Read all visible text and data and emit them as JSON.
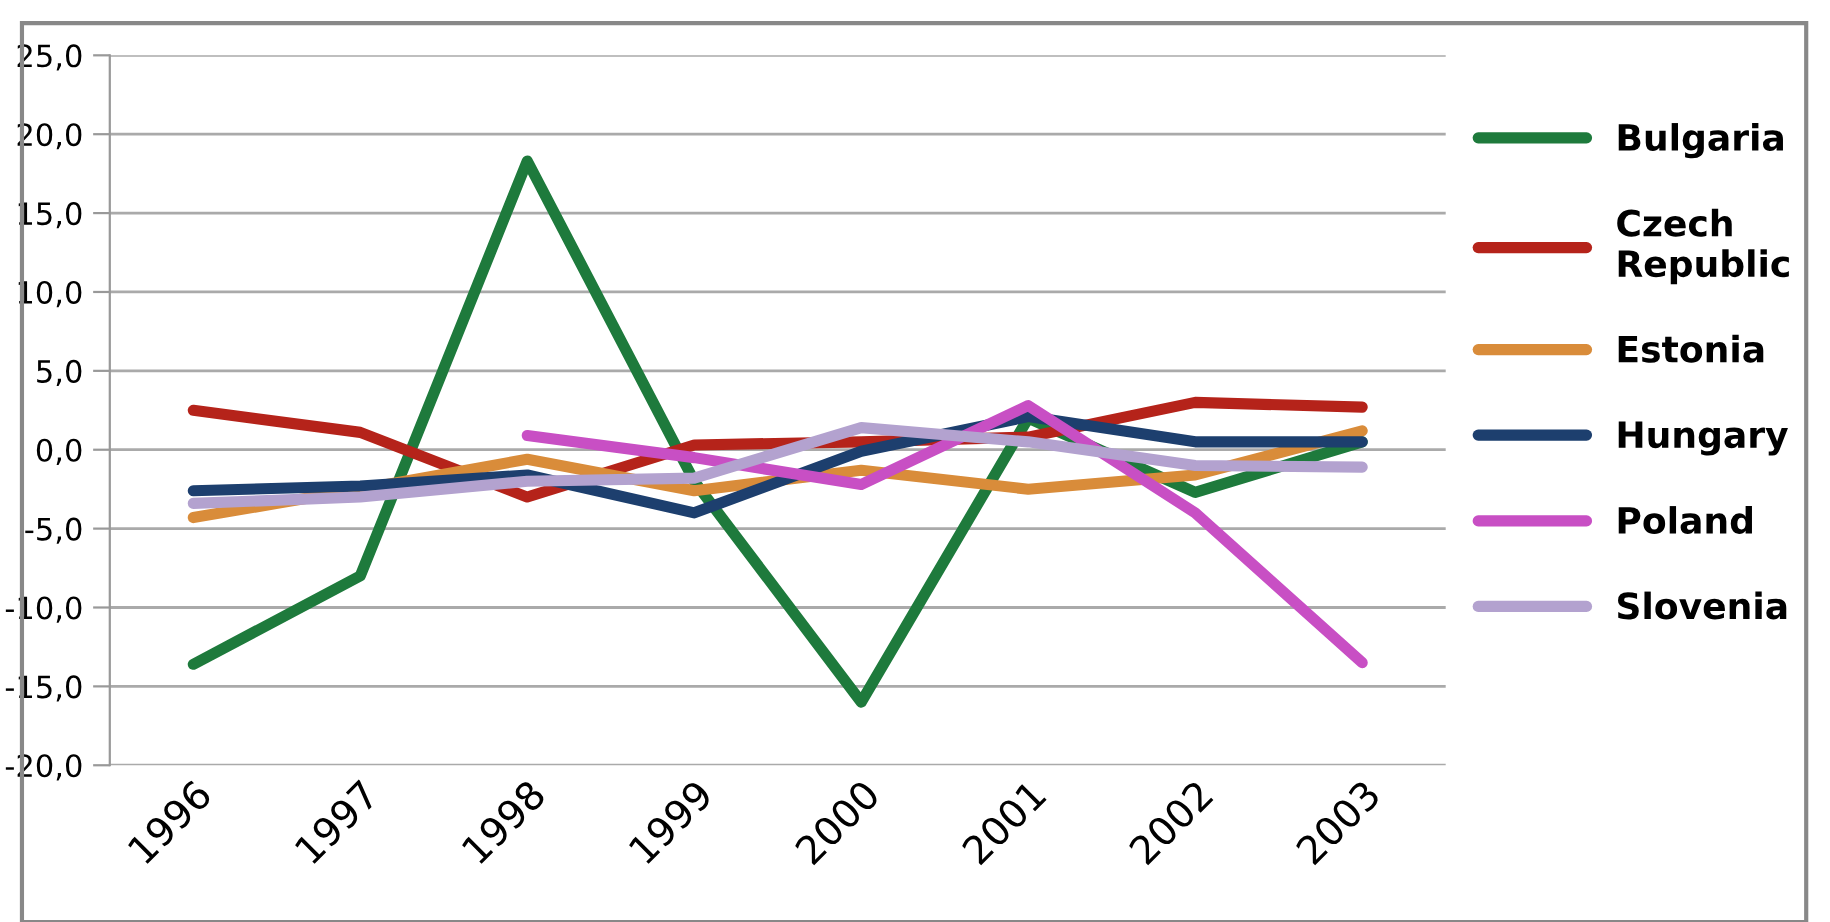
{
  "chart_data": {
    "type": "line",
    "categories": [
      "1996",
      "1997",
      "1998",
      "1999",
      "2000",
      "2001",
      "2002",
      "2003"
    ],
    "series": [
      {
        "name": "Bulgaria",
        "color": "#1e7a3c",
        "values": [
          -13.6,
          -8.0,
          18.3,
          -2.0,
          -16.0,
          2.0,
          -2.7,
          0.5
        ]
      },
      {
        "name": "Czech Republic",
        "color": "#b5231a",
        "values": [
          2.5,
          1.1,
          -3.0,
          0.3,
          0.5,
          0.8,
          3.0,
          2.7
        ]
      },
      {
        "name": "Estonia",
        "color": "#d98c3a",
        "values": [
          -4.3,
          -2.5,
          -0.6,
          -2.6,
          -1.3,
          -2.5,
          -1.6,
          1.2
        ]
      },
      {
        "name": "Hungary",
        "color": "#1d3f6e",
        "values": [
          -2.6,
          -2.3,
          -1.6,
          -4.0,
          -0.1,
          2.1,
          0.5,
          0.5
        ]
      },
      {
        "name": "Poland",
        "color": "#c84fc4",
        "values": [
          null,
          null,
          0.9,
          -0.5,
          -2.2,
          2.8,
          -4.0,
          -13.5
        ]
      },
      {
        "name": "Slovenia",
        "color": "#b3a2cf",
        "values": [
          -3.4,
          -3.0,
          -2.0,
          -1.8,
          1.4,
          0.5,
          -1.0,
          -1.1
        ]
      }
    ],
    "ylim": [
      -20,
      25
    ],
    "yticks": [
      {
        "value": -20,
        "label": "-20,0"
      },
      {
        "value": -15,
        "label": "-15,0"
      },
      {
        "value": -10,
        "label": "-10,0"
      },
      {
        "value": -5,
        "label": "-5,0"
      },
      {
        "value": 0,
        "label": "0,0"
      },
      {
        "value": 5,
        "label": "5,0"
      },
      {
        "value": 10,
        "label": "10,0"
      },
      {
        "value": 15,
        "label": "15,0"
      },
      {
        "value": 20,
        "label": "20,0"
      },
      {
        "value": 25,
        "label": "25,0"
      }
    ],
    "grid": "y",
    "legend": "right",
    "marker": "none",
    "line_style": "solid"
  }
}
